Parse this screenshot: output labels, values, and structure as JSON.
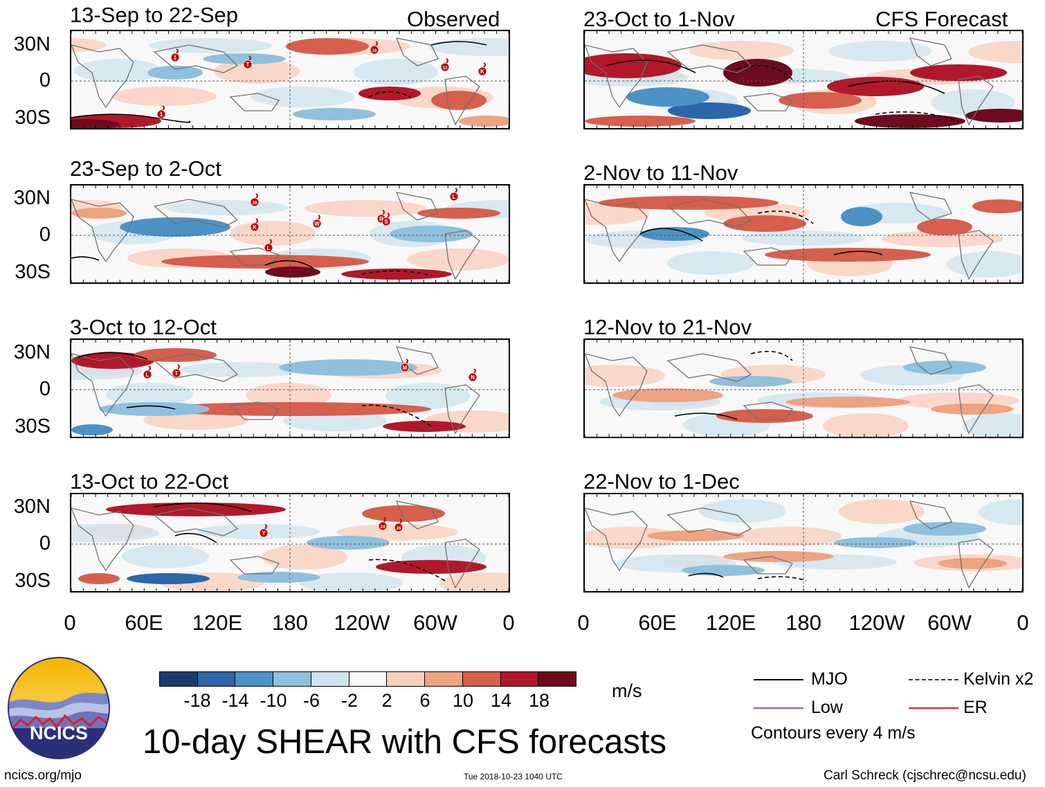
{
  "chart_data": {
    "type": "heatmap",
    "title": "10-day SHEAR with CFS forecasts",
    "units": "m/s",
    "column_titles": {
      "observed": "Observed",
      "forecast": "CFS Forecast"
    },
    "lat_ticks": [
      "30N",
      "0",
      "30S"
    ],
    "lon_ticks": [
      "0",
      "60E",
      "120E",
      "180",
      "120W",
      "60W",
      "0"
    ],
    "panels": [
      {
        "id": "obs-1",
        "group": "observed",
        "period": "13-Sep to 22-Sep",
        "storms": [
          "1",
          "T",
          "1",
          "16",
          "13",
          "K"
        ]
      },
      {
        "id": "obs-2",
        "group": "observed",
        "period": "23-Sep to 2-Oct",
        "storms": [
          "29",
          "K",
          "W",
          "L",
          "R",
          "S",
          "L"
        ]
      },
      {
        "id": "obs-3",
        "group": "observed",
        "period": "3-Oct to 12-Oct",
        "storms": [
          "L",
          "T",
          "M",
          "N"
        ]
      },
      {
        "id": "obs-4",
        "group": "observed",
        "period": "13-Oct to 22-Oct",
        "storms": [
          "Y",
          "24",
          "26"
        ]
      },
      {
        "id": "fc-1",
        "group": "forecast",
        "period": "23-Oct to 1-Nov",
        "storms": []
      },
      {
        "id": "fc-2",
        "group": "forecast",
        "period": "2-Nov to 11-Nov",
        "storms": []
      },
      {
        "id": "fc-3",
        "group": "forecast",
        "period": "12-Nov to 21-Nov",
        "storms": []
      },
      {
        "id": "fc-4",
        "group": "forecast",
        "period": "22-Nov to 1-Dec",
        "storms": []
      }
    ],
    "colorbar": {
      "labels": [
        "-18",
        "-14",
        "-10",
        "-6",
        "-2",
        "2",
        "6",
        "10",
        "14",
        "18"
      ],
      "colors": [
        "#1b3c6b",
        "#2c66ab",
        "#4c92c6",
        "#8fc0dd",
        "#cfe3ef",
        "#f8f8f8",
        "#f9d0bd",
        "#eea382",
        "#d65f4d",
        "#b2182b",
        "#6e0b1e"
      ]
    },
    "legend": {
      "items": [
        {
          "label": "MJO",
          "color": "#000000"
        },
        {
          "label": "Kelvin x2",
          "color": "#1f2fb5"
        },
        {
          "label": "Low",
          "color": "#9b4fd4"
        },
        {
          "label": "ER",
          "color": "#d62020"
        }
      ],
      "note": "Contours every 4 m/s"
    }
  },
  "branding": {
    "logo_text": "NCICS"
  },
  "footer": {
    "url": "ncics.org/mjo",
    "timestamp": "Tue 2018-10-23 1040 UTC",
    "credit": "Carl Schreck (cjschrec@ncsu.edu)"
  }
}
